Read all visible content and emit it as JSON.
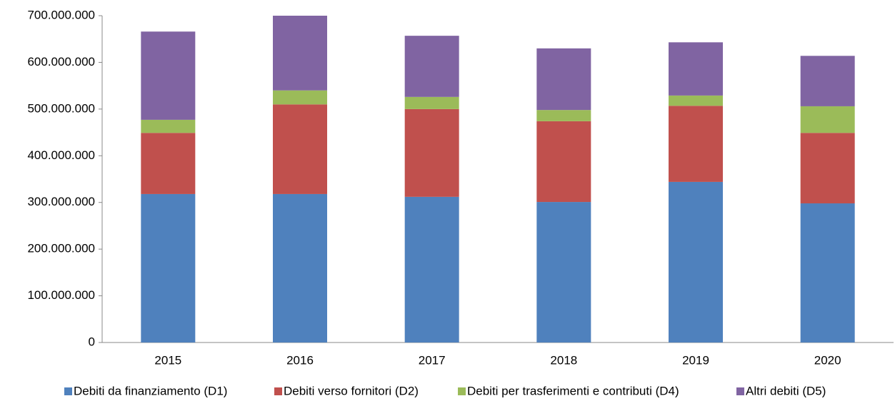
{
  "chart_data": {
    "type": "bar",
    "stacked": true,
    "categories": [
      "2015",
      "2016",
      "2017",
      "2018",
      "2019",
      "2020"
    ],
    "series": [
      {
        "name": "Debiti da finanziamento (D1)",
        "color": "#4f81bd",
        "values": [
          318000000,
          318000000,
          312000000,
          301000000,
          344000000,
          298000000
        ]
      },
      {
        "name": "Debiti verso fornitori (D2)",
        "color": "#c0504d",
        "values": [
          131000000,
          192000000,
          188000000,
          173000000,
          163000000,
          151000000
        ]
      },
      {
        "name": "Debiti per trasferimenti e contributi (D4)",
        "color": "#9bbb59",
        "values": [
          28000000,
          30000000,
          26000000,
          24000000,
          22000000,
          57000000
        ]
      },
      {
        "name": "Altri debiti (D5)",
        "color": "#8064a2",
        "values": [
          189000000,
          160000000,
          131000000,
          132000000,
          114000000,
          108000000
        ]
      }
    ],
    "ylim": [
      0,
      700000000
    ],
    "yticks": [
      0,
      {
        "value": 100000000,
        "label": "100.000.000"
      },
      {
        "value": 200000000,
        "label": "200.000.000"
      },
      {
        "value": 300000000,
        "label": "300.000.000"
      },
      {
        "value": 400000000,
        "label": "400.000.000"
      },
      {
        "value": 500000000,
        "label": "500.000.000"
      },
      {
        "value": 600000000,
        "label": "600.000.000"
      },
      {
        "value": 700000000,
        "label": "700.000.000"
      }
    ],
    "grid": false,
    "legend": "bottom"
  }
}
